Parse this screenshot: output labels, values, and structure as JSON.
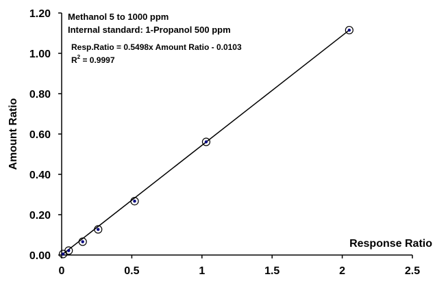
{
  "chart_data": {
    "type": "scatter",
    "xlabel": "Response Ratio",
    "ylabel": "Amount Ratio",
    "xlim": [
      0,
      2.5
    ],
    "ylim": [
      0,
      1.2
    ],
    "x_ticks": [
      "0",
      "0.5",
      "1",
      "1.5",
      "2",
      "2.5"
    ],
    "y_ticks": [
      "0.00",
      "0.20",
      "0.40",
      "0.60",
      "0.80",
      "1.00",
      "1.20"
    ],
    "grid": false,
    "annotations": {
      "line1": "Methanol 5 to 1000 ppm",
      "line2": "Internal standard: 1-Propanol 500 ppm",
      "equation": "Resp.Ratio = 0.5498x Amount Ratio - 0.0103",
      "r2_prefix": "R",
      "r2_exp": "2",
      "r2_value": " = 0.9997"
    },
    "series": [
      {
        "points": [
          {
            "x": 0.01,
            "y": 0.005
          },
          {
            "x": 0.05,
            "y": 0.022
          },
          {
            "x": 0.15,
            "y": 0.066
          },
          {
            "x": 0.26,
            "y": 0.127
          },
          {
            "x": 0.52,
            "y": 0.267
          },
          {
            "x": 1.03,
            "y": 0.561
          },
          {
            "x": 2.05,
            "y": 1.115
          }
        ]
      }
    ],
    "trendline": {
      "x": [
        0.0,
        2.05
      ],
      "y": [
        0.0,
        1.115
      ]
    }
  }
}
